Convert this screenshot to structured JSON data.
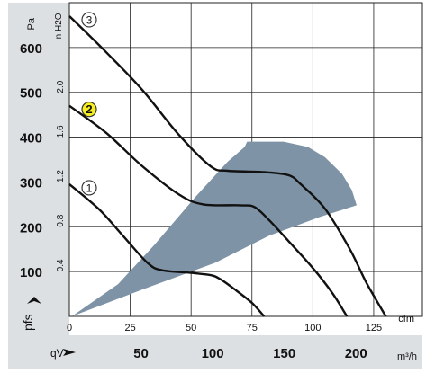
{
  "chart_data": {
    "type": "line",
    "title": "",
    "x_axis_primary": {
      "unit": "cfm",
      "ticks": [
        0,
        25,
        50,
        75,
        100,
        125
      ],
      "range": [
        0,
        145
      ]
    },
    "x_axis_secondary": {
      "symbol": "qV",
      "unit": "m³/h",
      "ticks": [
        50,
        100,
        150,
        200
      ]
    },
    "y_axis_primary": {
      "symbol": "pfs",
      "unit": "Pa",
      "ticks": [
        100,
        200,
        300,
        400,
        500,
        600
      ],
      "range": [
        0,
        700
      ]
    },
    "y_axis_secondary": {
      "unit": "in H2O",
      "ticks": [
        "0.4",
        "0.8",
        "1.2",
        "1.6",
        "2.0"
      ]
    },
    "grid": true,
    "operating_region": {
      "label": "",
      "polygon": [
        [
          1,
          0
        ],
        [
          30,
          60
        ],
        [
          60,
          120
        ],
        [
          82,
          180
        ],
        [
          103,
          222
        ],
        [
          118,
          248
        ],
        [
          116,
          282
        ],
        [
          112,
          318
        ],
        [
          105,
          355
        ],
        [
          98,
          378
        ],
        [
          88,
          390
        ],
        [
          73,
          390
        ],
        [
          72,
          378
        ],
        [
          65,
          345
        ],
        [
          52,
          268
        ],
        [
          35,
          160
        ],
        [
          20,
          72
        ]
      ]
    },
    "series": [
      {
        "name": "1",
        "points": [
          [
            0,
            295
          ],
          [
            12,
            240
          ],
          [
            22,
            180
          ],
          [
            32,
            120
          ],
          [
            38,
            103
          ],
          [
            50,
            97
          ],
          [
            58,
            92
          ],
          [
            62,
            83
          ],
          [
            68,
            60
          ],
          [
            75,
            30
          ],
          [
            80,
            0
          ]
        ]
      },
      {
        "name": "2",
        "points": [
          [
            0,
            470
          ],
          [
            15,
            410
          ],
          [
            30,
            335
          ],
          [
            45,
            272
          ],
          [
            55,
            250
          ],
          [
            70,
            248
          ],
          [
            76,
            244
          ],
          [
            82,
            215
          ],
          [
            90,
            168
          ],
          [
            100,
            108
          ],
          [
            108,
            52
          ],
          [
            114,
            0
          ]
        ]
      },
      {
        "name": "3",
        "points": [
          [
            0,
            670
          ],
          [
            15,
            590
          ],
          [
            30,
            505
          ],
          [
            45,
            405
          ],
          [
            58,
            335
          ],
          [
            65,
            325
          ],
          [
            80,
            322
          ],
          [
            90,
            315
          ],
          [
            95,
            295
          ],
          [
            105,
            240
          ],
          [
            115,
            152
          ],
          [
            122,
            75
          ],
          [
            130,
            0
          ]
        ]
      }
    ]
  }
}
